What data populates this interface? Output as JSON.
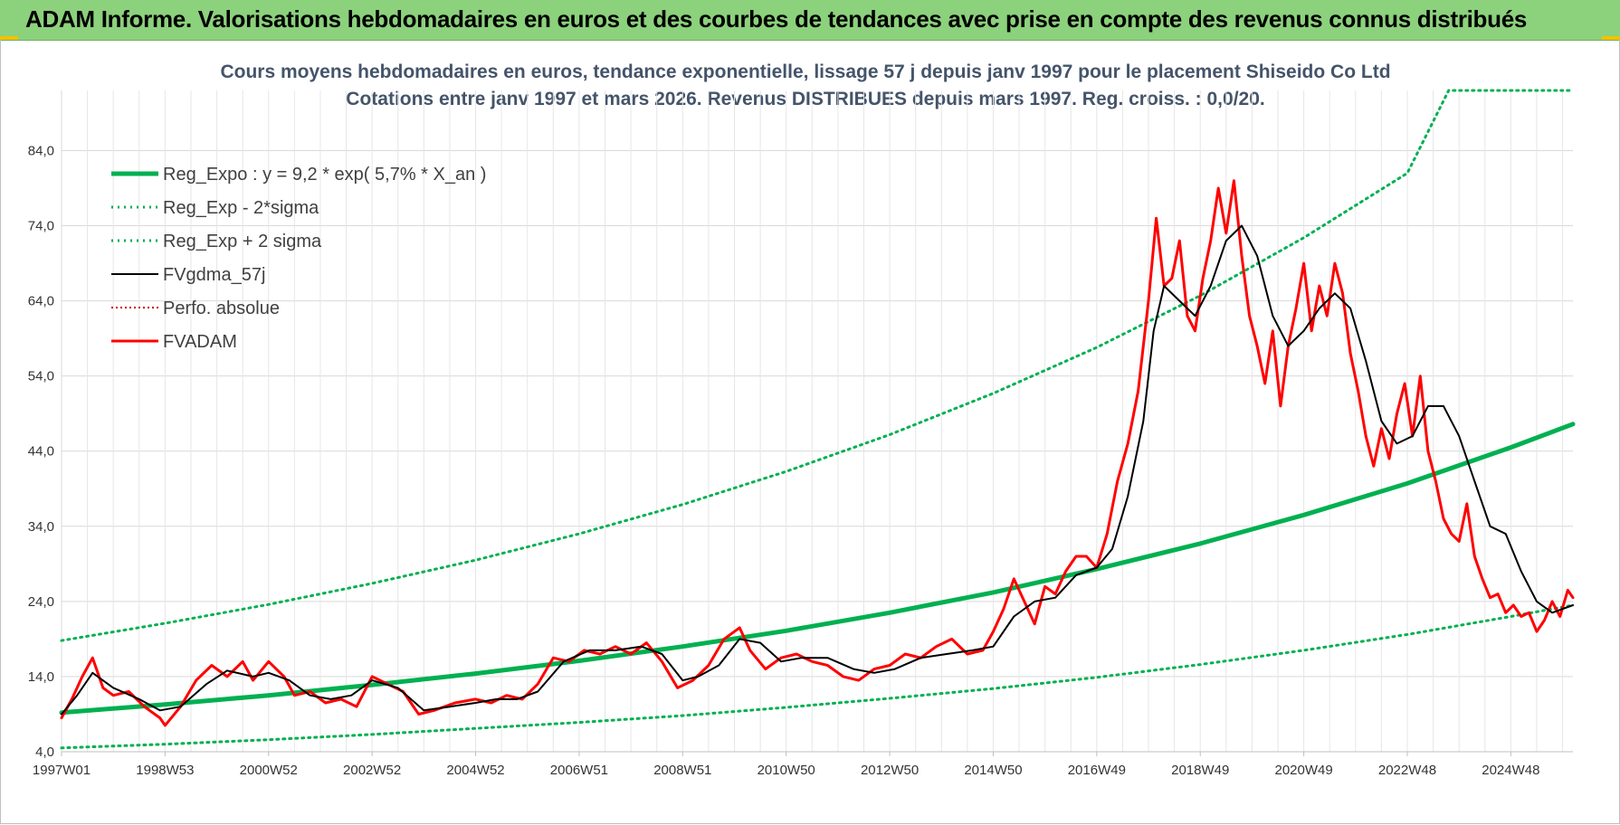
{
  "header": {
    "title": "ADAM Informe. Valorisations hebdomadaires en euros et des courbes de tendances avec prise en compte des revenus connus distribués"
  },
  "colors": {
    "header_bg": "#8cd17c",
    "reg_expo": "#00b050",
    "fvgdma": "#000000",
    "fvadam": "#ff0000",
    "perfo": "#c00000",
    "title": "#44546a",
    "grid": "#d9d9d9"
  },
  "chart_data": {
    "type": "line",
    "title_line1": "Cours moyens hebdomadaires en euros, tendance exponentielle, lissage 57 j depuis janv 1997  pour le placement Shiseido Co Ltd",
    "title_line2": "Cotations entre janv 1997 et mars 2026. Revenus DISTRIBUES depuis mars 1997. Reg. croiss. : 0,0/20.",
    "xlabel": "",
    "ylabel": "",
    "x_range": [
      1997.0,
      2026.2
    ],
    "ylim": [
      4,
      92
    ],
    "y_ticks": [
      "4,0",
      "14,0",
      "24,0",
      "34,0",
      "44,0",
      "54,0",
      "64,0",
      "74,0",
      "84,0"
    ],
    "y_tick_values": [
      4,
      14,
      24,
      34,
      44,
      54,
      64,
      74,
      84
    ],
    "x_tick_labels": [
      "1997W01",
      "1998W53",
      "2000W52",
      "2002W52",
      "2004W52",
      "2006W51",
      "2008W51",
      "2010W50",
      "2012W50",
      "2014W50",
      "2016W49",
      "2018W49",
      "2020W49",
      "2022W48",
      "2024W48"
    ],
    "x_tick_values": [
      1997.0,
      1999.0,
      2001.0,
      2003.0,
      2005.0,
      2007.0,
      2009.0,
      2011.0,
      2013.0,
      2015.0,
      2017.0,
      2019.0,
      2021.0,
      2023.0,
      2025.0
    ],
    "grid": true,
    "legend_position": "top-left",
    "legend": [
      "Reg_Expo : y = 9,2 * exp( 5,7% *  X_an )",
      "Reg_Exp - 2*sigma",
      "Reg_Exp + 2 sigma",
      "FVgdma_57j",
      "Perfo. absolue",
      "FVADAM"
    ],
    "series": [
      {
        "name": "Reg_Expo : y = 9,2 * exp( 5,7% *  X_an )",
        "x": [
          1997.0,
          1999.0,
          2001.0,
          2003.0,
          2005.0,
          2007.0,
          2009.0,
          2011.0,
          2013.0,
          2015.0,
          2017.0,
          2019.0,
          2021.0,
          2023.0,
          2025.0,
          2026.2
        ],
        "values": [
          9.2,
          10.3,
          11.5,
          12.9,
          14.4,
          16.1,
          18.0,
          20.1,
          22.5,
          25.2,
          28.3,
          31.7,
          35.5,
          39.7,
          44.5,
          47.6
        ]
      },
      {
        "name": "Reg_Exp - 2*sigma",
        "x": [
          1997.0,
          1999.0,
          2001.0,
          2003.0,
          2005.0,
          2007.0,
          2009.0,
          2011.0,
          2013.0,
          2015.0,
          2017.0,
          2019.0,
          2021.0,
          2023.0,
          2025.0,
          2026.2
        ],
        "values": [
          4.5,
          5.0,
          5.6,
          6.3,
          7.1,
          7.9,
          8.8,
          9.9,
          11.1,
          12.4,
          13.9,
          15.6,
          17.5,
          19.6,
          22.0,
          23.5
        ]
      },
      {
        "name": "Reg_Exp + 2 sigma",
        "x": [
          1997.0,
          1999.0,
          2001.0,
          2003.0,
          2005.0,
          2007.0,
          2009.0,
          2011.0,
          2013.0,
          2015.0,
          2017.0,
          2019.0,
          2021.0,
          2023.0,
          2023.8,
          2026.2
        ],
        "values": [
          18.8,
          21.1,
          23.6,
          26.4,
          29.5,
          33.0,
          36.9,
          41.3,
          46.2,
          51.7,
          57.8,
          64.7,
          72.4,
          81.0,
          92.0,
          92.0
        ]
      },
      {
        "name": "FVgdma_57j",
        "x": [
          1997.0,
          1997.3,
          1997.6,
          1998.0,
          1998.5,
          1998.9,
          1999.3,
          1999.8,
          2000.2,
          2000.7,
          2001.0,
          2001.4,
          2001.8,
          2002.2,
          2002.6,
          2003.0,
          2003.5,
          2004.0,
          2004.5,
          2005.0,
          2005.4,
          2005.8,
          2006.2,
          2006.7,
          2007.2,
          2007.7,
          2008.2,
          2008.6,
          2009.0,
          2009.3,
          2009.7,
          2010.1,
          2010.5,
          2010.9,
          2011.3,
          2011.8,
          2012.3,
          2012.7,
          2013.1,
          2013.6,
          2014.1,
          2014.6,
          2015.0,
          2015.4,
          2015.8,
          2016.2,
          2016.6,
          2017.0,
          2017.3,
          2017.6,
          2017.9,
          2018.1,
          2018.3,
          2018.6,
          2018.9,
          2019.2,
          2019.5,
          2019.8,
          2020.1,
          2020.4,
          2020.7,
          2021.0,
          2021.3,
          2021.6,
          2021.9,
          2022.2,
          2022.5,
          2022.8,
          2023.1,
          2023.4,
          2023.7,
          2024.0,
          2024.3,
          2024.6,
          2024.9,
          2025.2,
          2025.5,
          2025.8,
          2026.2
        ],
        "values": [
          9.0,
          11.5,
          14.5,
          12.5,
          11.0,
          9.5,
          10.0,
          13.0,
          14.8,
          14.0,
          14.5,
          13.5,
          11.5,
          11.0,
          11.5,
          13.5,
          12.5,
          9.5,
          10.0,
          10.5,
          11.0,
          11.0,
          12.0,
          16.0,
          17.5,
          17.5,
          18.0,
          17.0,
          13.5,
          14.0,
          15.5,
          19.0,
          18.5,
          16.0,
          16.5,
          16.5,
          15.0,
          14.5,
          15.0,
          16.5,
          17.0,
          17.5,
          18.0,
          22.0,
          24.0,
          24.5,
          27.5,
          28.5,
          31.0,
          38.0,
          48.0,
          60.0,
          66.0,
          64.0,
          62.0,
          66.0,
          72.0,
          74.0,
          70.0,
          62.0,
          58.0,
          60.0,
          63.0,
          65.0,
          63.0,
          56.0,
          48.0,
          45.0,
          46.0,
          50.0,
          50.0,
          46.0,
          40.0,
          34.0,
          33.0,
          28.0,
          24.0,
          22.5,
          23.5
        ]
      },
      {
        "name": "Perfo. absolue",
        "x": [
          1997.0,
          2000.0,
          2003.0,
          2006.0,
          2009.0,
          2012.0,
          2015.0,
          2018.0,
          2021.0,
          2024.0,
          2026.2
        ],
        "values": [
          null,
          null,
          null,
          null,
          null,
          null,
          null,
          null,
          null,
          null,
          null
        ]
      },
      {
        "name": "FVADAM",
        "x": [
          1997.0,
          1997.2,
          1997.4,
          1997.6,
          1997.8,
          1998.0,
          1998.3,
          1998.6,
          1998.9,
          1999.0,
          1999.3,
          1999.6,
          1999.9,
          2000.2,
          2000.5,
          2000.7,
          2001.0,
          2001.3,
          2001.5,
          2001.8,
          2002.1,
          2002.4,
          2002.7,
          2003.0,
          2003.3,
          2003.6,
          2003.9,
          2004.2,
          2004.6,
          2005.0,
          2005.3,
          2005.6,
          2005.9,
          2006.2,
          2006.5,
          2006.8,
          2007.1,
          2007.4,
          2007.7,
          2008.0,
          2008.3,
          2008.6,
          2008.9,
          2009.2,
          2009.5,
          2009.8,
          2010.1,
          2010.3,
          2010.6,
          2010.9,
          2011.2,
          2011.5,
          2011.8,
          2012.1,
          2012.4,
          2012.7,
          2013.0,
          2013.3,
          2013.6,
          2013.9,
          2014.2,
          2014.5,
          2014.8,
          2015.0,
          2015.2,
          2015.4,
          2015.6,
          2015.8,
          2016.0,
          2016.2,
          2016.4,
          2016.6,
          2016.8,
          2017.0,
          2017.2,
          2017.4,
          2017.6,
          2017.8,
          2018.0,
          2018.15,
          2018.3,
          2018.45,
          2018.6,
          2018.75,
          2018.9,
          2019.05,
          2019.2,
          2019.35,
          2019.5,
          2019.65,
          2019.8,
          2019.95,
          2020.1,
          2020.25,
          2020.4,
          2020.55,
          2020.7,
          2020.85,
          2021.0,
          2021.15,
          2021.3,
          2021.45,
          2021.6,
          2021.75,
          2021.9,
          2022.05,
          2022.2,
          2022.35,
          2022.5,
          2022.65,
          2022.8,
          2022.95,
          2023.1,
          2023.25,
          2023.4,
          2023.55,
          2023.7,
          2023.85,
          2024.0,
          2024.15,
          2024.3,
          2024.45,
          2024.6,
          2024.75,
          2024.9,
          2025.05,
          2025.2,
          2025.35,
          2025.5,
          2025.65,
          2025.8,
          2025.95,
          2026.1,
          2026.2
        ],
        "values": [
          8.5,
          11.0,
          14.0,
          16.5,
          12.5,
          11.5,
          12.0,
          10.0,
          8.5,
          7.5,
          10.0,
          13.5,
          15.5,
          14.0,
          16.0,
          13.5,
          16.0,
          14.0,
          11.5,
          12.0,
          10.5,
          11.0,
          10.0,
          14.0,
          13.0,
          12.0,
          9.0,
          9.5,
          10.5,
          11.0,
          10.5,
          11.5,
          11.0,
          13.0,
          16.5,
          16.0,
          17.5,
          17.0,
          18.0,
          17.0,
          18.5,
          16.0,
          12.5,
          13.5,
          15.5,
          19.0,
          20.5,
          17.5,
          15.0,
          16.5,
          17.0,
          16.0,
          15.5,
          14.0,
          13.5,
          15.0,
          15.5,
          17.0,
          16.5,
          18.0,
          19.0,
          17.0,
          17.5,
          20.0,
          23.0,
          27.0,
          24.0,
          21.0,
          26.0,
          25.0,
          28.0,
          30.0,
          30.0,
          28.5,
          33.0,
          40.0,
          45.0,
          52.0,
          64.0,
          75.0,
          66.0,
          67.0,
          72.0,
          62.0,
          60.0,
          67.0,
          72.0,
          79.0,
          73.0,
          80.0,
          70.0,
          62.0,
          58.0,
          53.0,
          60.0,
          50.0,
          58.0,
          63.0,
          69.0,
          60.0,
          66.0,
          62.0,
          69.0,
          65.0,
          57.0,
          52.0,
          46.0,
          42.0,
          47.0,
          43.0,
          49.0,
          53.0,
          46.0,
          54.0,
          44.0,
          40.0,
          35.0,
          33.0,
          32.0,
          37.0,
          30.0,
          27.0,
          24.5,
          25.0,
          22.5,
          23.5,
          22.0,
          22.5,
          20.0,
          21.5,
          24.0,
          22.0,
          25.5,
          24.5
        ]
      }
    ]
  }
}
